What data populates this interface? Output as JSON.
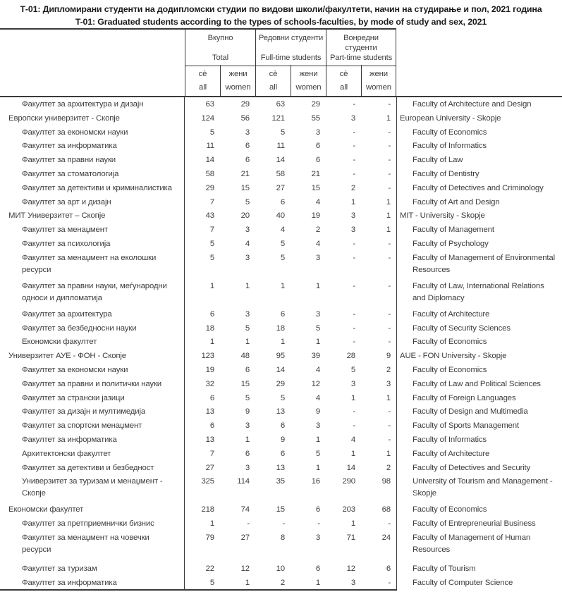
{
  "page": {
    "title_mk": "Т-01: Дипломирани студенти на додипломски студии по видови школи/факултети, начин на студирање и пол, 2021 година",
    "title_en": "T-01: Graduated students according to the types of schools-faculties, by mode of study and sex, 2021"
  },
  "table": {
    "column_groups": [
      {
        "label_mk": "Вкупно",
        "label_en": "Total"
      },
      {
        "label_mk": "Редовни студенти",
        "label_en": "Full-time students"
      },
      {
        "label_mk": "Вонредни студенти",
        "label_en": "Part-time students"
      }
    ],
    "subheaders": [
      {
        "label_mk": "сè",
        "label_en": "all"
      },
      {
        "label_mk": "жени",
        "label_en": "women"
      }
    ],
    "rows": [
      {
        "name_mk": "Факултет за архитектура и дизајн",
        "name_en": "Faculty of Architecture and Design",
        "level_mk": "faculty",
        "level_en": "faculty",
        "values": [
          "63",
          "29",
          "63",
          "29",
          "-",
          "-"
        ]
      },
      {
        "name_mk": "Европски универзитет - Скопје",
        "name_en": "European University - Skopje",
        "level_mk": "university",
        "level_en": "university",
        "values": [
          "124",
          "56",
          "121",
          "55",
          "3",
          "1"
        ]
      },
      {
        "name_mk": "Факултет за економски науки",
        "name_en": "Faculty of Economics",
        "level_mk": "faculty",
        "level_en": "faculty",
        "values": [
          "5",
          "3",
          "5",
          "3",
          "-",
          "-"
        ]
      },
      {
        "name_mk": "Факултет за информатика",
        "name_en": "Faculty of Informatics",
        "level_mk": "faculty",
        "level_en": "faculty",
        "values": [
          "11",
          "6",
          "11",
          "6",
          "-",
          "-"
        ]
      },
      {
        "name_mk": "Факултет за правни науки",
        "name_en": "Faculty of Law",
        "level_mk": "faculty",
        "level_en": "faculty",
        "values": [
          "14",
          "6",
          "14",
          "6",
          "-",
          "-"
        ]
      },
      {
        "name_mk": "Факултет за стоматологија",
        "name_en": "Faculty of Dentistry",
        "level_mk": "faculty",
        "level_en": "faculty",
        "values": [
          "58",
          "21",
          "58",
          "21",
          "-",
          "-"
        ]
      },
      {
        "name_mk": "Факултет за детективи и криминалистика",
        "name_en": "Faculty of Detectives and Criminology",
        "level_mk": "faculty",
        "level_en": "faculty",
        "values": [
          "29",
          "15",
          "27",
          "15",
          "2",
          "-"
        ]
      },
      {
        "name_mk": "Факултет за арт и дизајн",
        "name_en": "Faculty of Art and Design",
        "level_mk": "faculty",
        "level_en": "faculty",
        "values": [
          "7",
          "5",
          "6",
          "4",
          "1",
          "1"
        ]
      },
      {
        "name_mk": "МИТ Универзитет – Скопје",
        "name_en": "MIT - University - Skopje",
        "level_mk": "university",
        "level_en": "university",
        "values": [
          "43",
          "20",
          "40",
          "19",
          "3",
          "1"
        ]
      },
      {
        "name_mk": "Факултет за менаџмент",
        "name_en": "Faculty of Management",
        "level_mk": "faculty",
        "level_en": "faculty",
        "values": [
          "7",
          "3",
          "4",
          "2",
          "3",
          "1"
        ]
      },
      {
        "name_mk": "Факултет за психологија",
        "name_en": "Faculty of Psychology",
        "level_mk": "faculty",
        "level_en": "faculty",
        "values": [
          "5",
          "4",
          "5",
          "4",
          "-",
          "-"
        ]
      },
      {
        "name_mk": "Факултет за менаџмент на еколошки ресурси",
        "name_en": "Faculty of Management of Environmental Resources",
        "level_mk": "faculty",
        "level_en": "faculty",
        "values": [
          "5",
          "3",
          "5",
          "3",
          "-",
          "-"
        ]
      },
      {
        "name_mk": "Факултет за правни науки, меѓународни односи и дипломатија",
        "name_en": "Faculty of Law, International Relations and Diplomacy",
        "level_mk": "faculty",
        "level_en": "faculty",
        "values": [
          "1",
          "1",
          "1",
          "1",
          "-",
          "-"
        ]
      },
      {
        "name_mk": "Факултет за архитектура",
        "name_en": "Faculty of Architecture",
        "level_mk": "faculty",
        "level_en": "faculty",
        "values": [
          "6",
          "3",
          "6",
          "3",
          "-",
          "-"
        ]
      },
      {
        "name_mk": "Факултет за безбедносни науки",
        "name_en": "Faculty of Security Sciences",
        "level_mk": "faculty",
        "level_en": "faculty",
        "values": [
          "18",
          "5",
          "18",
          "5",
          "-",
          "-"
        ]
      },
      {
        "name_mk": "Економски факултет",
        "name_en": "Faculty of Economics",
        "level_mk": "faculty",
        "level_en": "faculty",
        "values": [
          "1",
          "1",
          "1",
          "1",
          "-",
          "-"
        ]
      },
      {
        "name_mk": "Универзитет АУЕ - ФОН - Скопје",
        "name_en": "AUE - FON University - Skopje",
        "level_mk": "university",
        "level_en": "university",
        "values": [
          "123",
          "48",
          "95",
          "39",
          "28",
          "9"
        ]
      },
      {
        "name_mk": "Факултет за економски науки",
        "name_en": "Faculty of Economics",
        "level_mk": "faculty",
        "level_en": "faculty",
        "values": [
          "19",
          "6",
          "14",
          "4",
          "5",
          "2"
        ]
      },
      {
        "name_mk": "Факултет за правни и политички науки",
        "name_en": "Faculty of Law and Political Sciences",
        "level_mk": "faculty",
        "level_en": "faculty",
        "values": [
          "32",
          "15",
          "29",
          "12",
          "3",
          "3"
        ]
      },
      {
        "name_mk": "Факултет за странски јазици",
        "name_en": "Faculty of Foreign Languages",
        "level_mk": "faculty",
        "level_en": "faculty",
        "values": [
          "6",
          "5",
          "5",
          "4",
          "1",
          "1"
        ]
      },
      {
        "name_mk": "Факултет за дизајн и мултимедија",
        "name_en": "Faculty of Design and Multimedia",
        "level_mk": "faculty",
        "level_en": "faculty",
        "values": [
          "13",
          "9",
          "13",
          "9",
          "-",
          "-"
        ]
      },
      {
        "name_mk": "Факултет за спортски менаџмент",
        "name_en": "Faculty of Sports Management",
        "level_mk": "faculty",
        "level_en": "faculty",
        "values": [
          "6",
          "3",
          "6",
          "3",
          "-",
          "-"
        ]
      },
      {
        "name_mk": "Факултет за информатика",
        "name_en": "Faculty of Informatics",
        "level_mk": "faculty",
        "level_en": "faculty",
        "values": [
          "13",
          "1",
          "9",
          "1",
          "4",
          "-"
        ]
      },
      {
        "name_mk": "Архитектонски факултет",
        "name_en": "Faculty of Architecture",
        "level_mk": "faculty",
        "level_en": "faculty",
        "values": [
          "7",
          "6",
          "6",
          "5",
          "1",
          "1"
        ]
      },
      {
        "name_mk": "Факултет за детективи и безбедност",
        "name_en": "Faculty of Detectives and Security",
        "level_mk": "faculty",
        "level_en": "faculty",
        "values": [
          "27",
          "3",
          "13",
          "1",
          "14",
          "2"
        ]
      },
      {
        "name_mk": "Универзитет за туризам и менаџмент  - Скопје",
        "name_en": "University of Tourism and Management - Skopje",
        "level_mk": "faculty",
        "level_en": "faculty",
        "values": [
          "325",
          "114",
          "35",
          "16",
          "290",
          "98"
        ]
      },
      {
        "name_mk": "Економски факултет",
        "name_en": "Faculty of Economics",
        "level_mk": "university",
        "level_en": "faculty",
        "values": [
          "218",
          "74",
          "15",
          "6",
          "203",
          "68"
        ]
      },
      {
        "name_mk": "Факултет за претприемнички бизнис",
        "name_en": "Faculty of Entrepreneurial Business",
        "level_mk": "faculty",
        "level_en": "faculty",
        "values": [
          "1",
          "-",
          "-",
          "-",
          "1",
          "-"
        ]
      },
      {
        "name_mk": "Факултет за менаџмент на човечки ресурси",
        "name_en": "Faculty of Management of Human Resources",
        "level_mk": "faculty",
        "level_en": "faculty",
        "values": [
          "79",
          "27",
          "8",
          "3",
          "71",
          "24"
        ]
      },
      {
        "name_mk": "Факултет за туризам",
        "name_en": "Faculty of Tourism",
        "level_mk": "faculty",
        "level_en": "faculty",
        "values": [
          "22",
          "12",
          "10",
          "6",
          "12",
          "6"
        ]
      },
      {
        "name_mk": "Факултет за информатика",
        "name_en": "Faculty of Computer Science",
        "level_mk": "faculty",
        "level_en": "faculty",
        "values": [
          "5",
          "1",
          "2",
          "1",
          "3",
          "-"
        ]
      }
    ]
  }
}
